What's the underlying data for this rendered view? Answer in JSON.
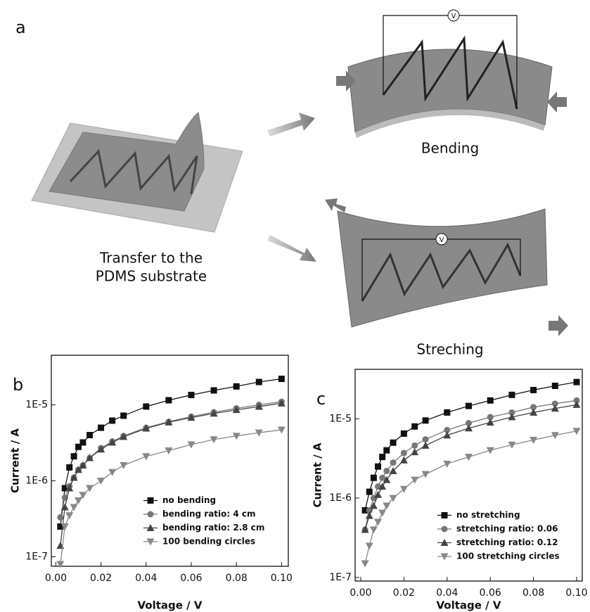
{
  "panel_a": {
    "label": "a",
    "transfer_line1": "Transfer to the",
    "transfer_line2": "PDMS substrate",
    "bending": "Bending",
    "stretching": "Streching",
    "meter_symbol": "V"
  },
  "chart_data": [
    {
      "type": "line",
      "label": "b",
      "x_label": "Voltage / V",
      "y_label": "Current / A",
      "log_y": true,
      "legend": "lower right",
      "xlim": [
        -0.002,
        0.103
      ],
      "ylim": [
        7.5e-08,
        4.5e-05
      ],
      "xticks": [
        {
          "value": 0,
          "label": "0.00"
        },
        {
          "value": 0.02,
          "label": "0.02"
        },
        {
          "value": 0.04,
          "label": "0.04"
        },
        {
          "value": 0.06,
          "label": "0.06"
        },
        {
          "value": 0.08,
          "label": "0.08"
        },
        {
          "value": 0.1,
          "label": "0.10"
        }
      ],
      "yticks": [
        {
          "value": 1e-07,
          "label": "1E-7"
        },
        {
          "value": 1e-06,
          "label": "1E-6"
        },
        {
          "value": 1e-05,
          "label": "1E-5"
        }
      ],
      "x": [
        0.002,
        0.004,
        0.006,
        0.008,
        0.01,
        0.012,
        0.015,
        0.02,
        0.025,
        0.03,
        0.04,
        0.05,
        0.06,
        0.07,
        0.08,
        0.09,
        0.1
      ],
      "series": [
        {
          "name": "no bending",
          "color": "#111111",
          "marker": "square",
          "values": [
            2.5e-07,
            8e-07,
            1.5e-06,
            2.1e-06,
            2.8e-06,
            3.2e-06,
            4e-06,
            5e-06,
            6.2e-06,
            7.2e-06,
            9.5e-06,
            1.15e-05,
            1.35e-05,
            1.55e-05,
            1.75e-05,
            2e-05,
            2.2e-05
          ]
        },
        {
          "name": "bending ratio: 4 cm",
          "color": "#777777",
          "marker": "circle",
          "values": [
            3.3e-07,
            6e-07,
            8.5e-07,
            1.1e-06,
            1.4e-06,
            1.6e-06,
            2e-06,
            2.7e-06,
            3.3e-06,
            3.9e-06,
            5e-06,
            6e-06,
            7e-06,
            8e-06,
            9e-06,
            1e-05,
            1.1e-05
          ]
        },
        {
          "name": "bending ratio: 2.8 cm",
          "color": "#444444",
          "marker": "triangle",
          "values": [
            1.4e-07,
            4.5e-07,
            8e-07,
            1.1e-06,
            1.4e-06,
            1.6e-06,
            2e-06,
            2.6e-06,
            3.2e-06,
            3.8e-06,
            4.9e-06,
            5.9e-06,
            6.8e-06,
            7.7e-06,
            8.6e-06,
            9.5e-06,
            1.05e-05
          ]
        },
        {
          "name": "100 bending circles",
          "color": "#888888",
          "marker": "triangle-down",
          "values": [
            8e-08,
            2.5e-07,
            3.5e-07,
            4.5e-07,
            5.5e-07,
            6.5e-07,
            8e-07,
            1e-06,
            1.3e-06,
            1.6e-06,
            2.1e-06,
            2.5e-06,
            3e-06,
            3.5e-06,
            3.9e-06,
            4.3e-06,
            4.7e-06
          ]
        }
      ]
    },
    {
      "type": "line",
      "label": "c",
      "x_label": "Voltage / V",
      "y_label": "Current / A",
      "log_y": true,
      "legend": "lower right",
      "xlim": [
        -0.0026,
        0.1026
      ],
      "ylim": [
        9e-08,
        4.2e-05
      ],
      "xticks": [
        {
          "value": 0,
          "label": "0.00"
        },
        {
          "value": 0.02,
          "label": "0.02"
        },
        {
          "value": 0.04,
          "label": "0.04"
        },
        {
          "value": 0.06,
          "label": "0.06"
        },
        {
          "value": 0.08,
          "label": "0.08"
        },
        {
          "value": 0.1,
          "label": "0.10"
        }
      ],
      "yticks": [
        {
          "value": 1e-07,
          "label": "1E-7"
        },
        {
          "value": 1e-06,
          "label": "1E-6"
        },
        {
          "value": 1e-05,
          "label": "1E-5"
        }
      ],
      "x": [
        0.002,
        0.004,
        0.006,
        0.008,
        0.01,
        0.012,
        0.015,
        0.02,
        0.025,
        0.03,
        0.04,
        0.05,
        0.06,
        0.07,
        0.08,
        0.09,
        0.1
      ],
      "series": [
        {
          "name": "no stretching",
          "color": "#111111",
          "marker": "square",
          "values": [
            7e-07,
            1.2e-06,
            1.8e-06,
            2.5e-06,
            3.3e-06,
            4e-06,
            5e-06,
            6.5e-06,
            8e-06,
            9.5e-06,
            1.2e-05,
            1.45e-05,
            1.7e-05,
            2e-05,
            2.3e-05,
            2.6e-05,
            2.9e-05
          ]
        },
        {
          "name": "stretching ratio: 0.06",
          "color": "#777777",
          "marker": "circle",
          "values": [
            4e-07,
            7e-07,
            1e-06,
            1.4e-06,
            1.8e-06,
            2.2e-06,
            2.8e-06,
            3.7e-06,
            4.6e-06,
            5.5e-06,
            7.2e-06,
            8.8e-06,
            1.05e-05,
            1.2e-05,
            1.4e-05,
            1.55e-05,
            1.7e-05
          ]
        },
        {
          "name": "stretching ratio: 0.12",
          "color": "#444444",
          "marker": "triangle",
          "values": [
            4e-07,
            6e-07,
            8e-07,
            1.1e-06,
            1.4e-06,
            1.7e-06,
            2.2e-06,
            3e-06,
            3.8e-06,
            4.6e-06,
            6.2e-06,
            7.6e-06,
            9e-06,
            1.05e-05,
            1.2e-05,
            1.35e-05,
            1.5e-05
          ]
        },
        {
          "name": "100 stretching circles",
          "color": "#888888",
          "marker": "triangle-down",
          "values": [
            1.5e-07,
            2.5e-07,
            4e-07,
            5e-07,
            6.5e-07,
            8e-07,
            1e-06,
            1.3e-06,
            1.7e-06,
            2e-06,
            2.7e-06,
            3.3e-06,
            4e-06,
            4.7e-06,
            5.4e-06,
            6.2e-06,
            7e-06
          ]
        }
      ]
    }
  ]
}
